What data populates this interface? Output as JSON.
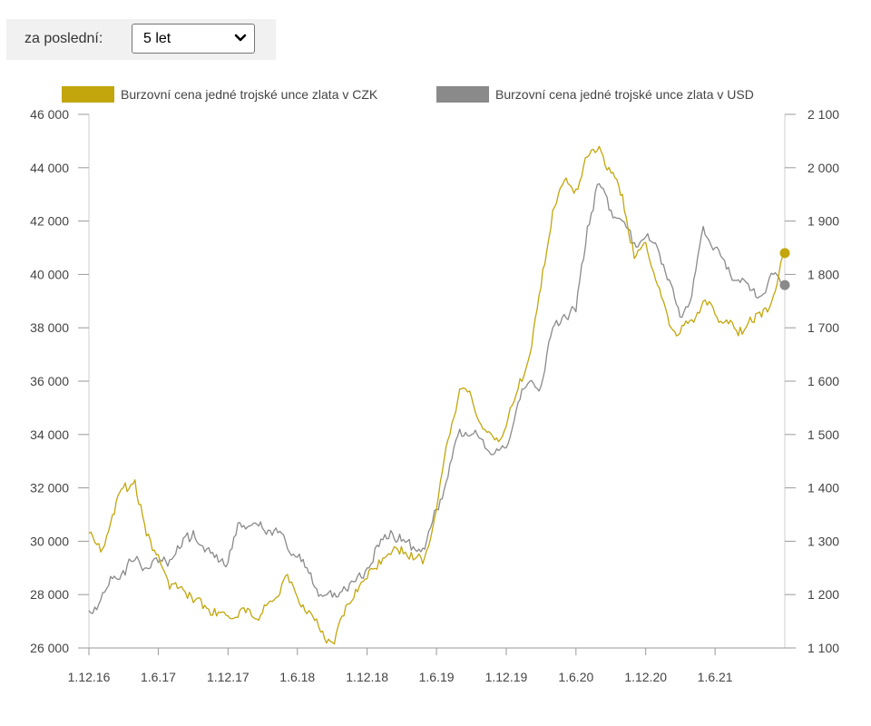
{
  "period": {
    "label": "za poslední:",
    "value": "5 let"
  },
  "chart_data": {
    "type": "line",
    "title": "",
    "xlabel": "",
    "x_ticks": [
      "1.12.16",
      "1.6.17",
      "1.12.17",
      "1.6.18",
      "1.12.18",
      "1.6.19",
      "1.12.19",
      "1.6.20",
      "1.12.20",
      "1.6.21"
    ],
    "y_left": {
      "range": [
        26000,
        46000
      ],
      "ticks": [
        "26 000",
        "28 000",
        "30 000",
        "32 000",
        "34 000",
        "36 000",
        "38 000",
        "40 000",
        "42 000",
        "44 000",
        "46 000"
      ]
    },
    "y_right": {
      "range": [
        1100,
        2100
      ],
      "ticks": [
        "1 100",
        "1 200",
        "1 300",
        "1 400",
        "1 500",
        "1 600",
        "1 700",
        "1 800",
        "1 900",
        "2 000",
        "2 100"
      ]
    },
    "legend_position": "top",
    "grid": false,
    "series": [
      {
        "name": "Burzovní cena jedné trojské unce zlata v CZK",
        "axis": "left",
        "color": "#c2a60b",
        "x": [
          "2016-12-01",
          "2017-01-01",
          "2017-02-01",
          "2017-03-01",
          "2017-04-01",
          "2017-05-01",
          "2017-06-01",
          "2017-07-01",
          "2017-08-01",
          "2017-09-01",
          "2017-10-01",
          "2017-11-01",
          "2017-12-01",
          "2018-01-01",
          "2018-02-01",
          "2018-03-01",
          "2018-04-01",
          "2018-05-01",
          "2018-06-01",
          "2018-07-01",
          "2018-08-01",
          "2018-09-01",
          "2018-10-01",
          "2018-11-01",
          "2018-12-01",
          "2019-01-01",
          "2019-02-01",
          "2019-03-01",
          "2019-04-01",
          "2019-05-01",
          "2019-06-01",
          "2019-07-01",
          "2019-08-01",
          "2019-09-01",
          "2019-10-01",
          "2019-11-01",
          "2019-12-01",
          "2020-01-01",
          "2020-02-01",
          "2020-03-01",
          "2020-04-01",
          "2020-05-01",
          "2020-06-01",
          "2020-07-01",
          "2020-08-01",
          "2020-09-01",
          "2020-10-01",
          "2020-11-01",
          "2020-12-01",
          "2021-01-01",
          "2021-02-01",
          "2021-03-01",
          "2021-04-01",
          "2021-05-01",
          "2021-06-01",
          "2021-07-01",
          "2021-08-01",
          "2021-09-01",
          "2021-10-01",
          "2021-11-01",
          "2021-12-01"
        ],
        "values": [
          30300,
          29600,
          31000,
          32000,
          32300,
          30200,
          29500,
          28200,
          28300,
          27700,
          27600,
          27200,
          27200,
          27400,
          27200,
          27300,
          27800,
          28700,
          27900,
          27400,
          26600,
          26200,
          27200,
          28200,
          28600,
          29300,
          29500,
          29800,
          29300,
          29400,
          31200,
          33800,
          35700,
          35400,
          34200,
          33800,
          34300,
          35700,
          37000,
          39500,
          42400,
          43500,
          43200,
          44400,
          44800,
          43800,
          43000,
          40600,
          41200,
          39600,
          38100,
          37800,
          38300,
          39000,
          38500,
          38300,
          37700,
          38400,
          38400,
          39200,
          40800
        ]
      },
      {
        "name": "Burzovní cena jedné trojské unce zlata v USD",
        "axis": "right",
        "color": "#8a8a8a",
        "x": [
          "2016-12-01",
          "2017-01-01",
          "2017-02-01",
          "2017-03-01",
          "2017-04-01",
          "2017-05-01",
          "2017-06-01",
          "2017-07-01",
          "2017-08-01",
          "2017-09-01",
          "2017-10-01",
          "2017-11-01",
          "2017-12-01",
          "2018-01-01",
          "2018-02-01",
          "2018-03-01",
          "2018-04-01",
          "2018-05-01",
          "2018-06-01",
          "2018-07-01",
          "2018-08-01",
          "2018-09-01",
          "2018-10-01",
          "2018-11-01",
          "2018-12-01",
          "2019-01-01",
          "2019-02-01",
          "2019-03-01",
          "2019-04-01",
          "2019-05-01",
          "2019-06-01",
          "2019-07-01",
          "2019-08-01",
          "2019-09-01",
          "2019-10-01",
          "2019-11-01",
          "2019-12-01",
          "2020-01-01",
          "2020-02-01",
          "2020-03-01",
          "2020-04-01",
          "2020-05-01",
          "2020-06-01",
          "2020-07-01",
          "2020-08-01",
          "2020-09-01",
          "2020-10-01",
          "2020-11-01",
          "2020-12-01",
          "2021-01-01",
          "2021-02-01",
          "2021-03-01",
          "2021-04-01",
          "2021-05-01",
          "2021-06-01",
          "2021-07-01",
          "2021-08-01",
          "2021-09-01",
          "2021-10-01",
          "2021-11-01",
          "2021-12-01"
        ],
        "values": [
          1170,
          1190,
          1230,
          1245,
          1265,
          1250,
          1260,
          1265,
          1290,
          1320,
          1280,
          1275,
          1260,
          1335,
          1330,
          1325,
          1320,
          1300,
          1270,
          1240,
          1200,
          1195,
          1215,
          1225,
          1250,
          1290,
          1320,
          1300,
          1290,
          1285,
          1360,
          1420,
          1510,
          1500,
          1490,
          1465,
          1475,
          1560,
          1600,
          1590,
          1700,
          1725,
          1730,
          1890,
          1970,
          1920,
          1900,
          1860,
          1870,
          1850,
          1790,
          1720,
          1760,
          1890,
          1850,
          1810,
          1790,
          1770,
          1760,
          1800,
          1780
        ]
      }
    ]
  }
}
